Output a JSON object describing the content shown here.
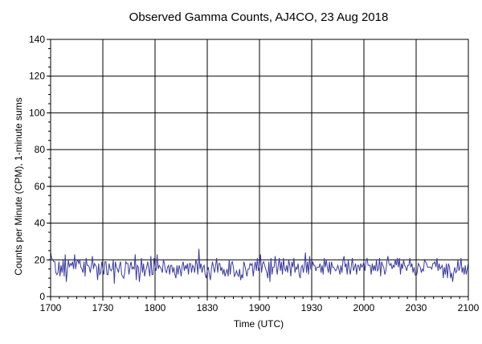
{
  "chart_data": {
    "type": "line",
    "title": "Observed Gamma Counts, AJ4CO, 23 Aug 2018",
    "xlabel": "Time (UTC)",
    "ylabel": "Counts per Minute (CPM), 1-minute sums",
    "xlim": [
      1700,
      2100
    ],
    "ylim": [
      0,
      140
    ],
    "x_ticks": [
      "1700",
      "1730",
      "1800",
      "1830",
      "1900",
      "1930",
      "2000",
      "2030",
      "2100"
    ],
    "y_ticks": [
      "0",
      "20",
      "40",
      "60",
      "80",
      "100",
      "120",
      "140"
    ],
    "grid": true,
    "line_color": "#3a3aa0",
    "series": [
      {
        "values": [
          24,
          21,
          20,
          19,
          19,
          13,
          12,
          13,
          19,
          11,
          17,
          13,
          20,
          11,
          23,
          8,
          14,
          20,
          16,
          18,
          17,
          19,
          15,
          23,
          15,
          19,
          20,
          18,
          20,
          16,
          15,
          13,
          19,
          11,
          21,
          17,
          17,
          16,
          13,
          17,
          22,
          15,
          18,
          17,
          16,
          9,
          18,
          12,
          13,
          19,
          15,
          12,
          19,
          19,
          12,
          12,
          18,
          15,
          14,
          15,
          20,
          7,
          19,
          16,
          15,
          13,
          17,
          19,
          12,
          11,
          10,
          13,
          19,
          18,
          18,
          12,
          16,
          19,
          15,
          16,
          15,
          23,
          9,
          17,
          16,
          8,
          14,
          21,
          13,
          18,
          11,
          14,
          16,
          19,
          15,
          11,
          22,
          12,
          12,
          21,
          16,
          14,
          23,
          15,
          17,
          16,
          15,
          13,
          20,
          18,
          14,
          13,
          16,
          17,
          12,
          17,
          17,
          13,
          16,
          12,
          10,
          17,
          12,
          17,
          15,
          11,
          17,
          19,
          14,
          17,
          15,
          18,
          12,
          18,
          18,
          13,
          17,
          16,
          13,
          20,
          18,
          12,
          26,
          15,
          18,
          13,
          16,
          17,
          12,
          10,
          14,
          16,
          12,
          9,
          15,
          19,
          16,
          13,
          17,
          21,
          13,
          18,
          18,
          14,
          16,
          12,
          15,
          11,
          13,
          15,
          11,
          20,
          12,
          18,
          19,
          16,
          11,
          12,
          14,
          12,
          11,
          15,
          9,
          12,
          10,
          19,
          17,
          14,
          11,
          15,
          15,
          18,
          17,
          18,
          11,
          16,
          19,
          14,
          21,
          14,
          16,
          23,
          13,
          18,
          19,
          17,
          15,
          13,
          10,
          19,
          8,
          21,
          12,
          16,
          16,
          22,
          17,
          12,
          17,
          21,
          14,
          19,
          12,
          21,
          15,
          14,
          17,
          13,
          20,
          17,
          11,
          19,
          16,
          21,
          13,
          16,
          15,
          18,
          12,
          10,
          16,
          17,
          13,
          17,
          24,
          13,
          19,
          12,
          22,
          15,
          15,
          19,
          17,
          17,
          14,
          16,
          16,
          16,
          18,
          13,
          17,
          12,
          21,
          16,
          20,
          16,
          13,
          19,
          12,
          19,
          16,
          16,
          15,
          14,
          15,
          17,
          15,
          12,
          17,
          13,
          20,
          22,
          16,
          18,
          12,
          20,
          15,
          12,
          17,
          21,
          14,
          16,
          18,
          12,
          17,
          17,
          14,
          18,
          16,
          17,
          19,
          14,
          19,
          21,
          17,
          17,
          17,
          12,
          18,
          14,
          17,
          14,
          20,
          14,
          15,
          21,
          11,
          19,
          17,
          16,
          12,
          14,
          19,
          22,
          18,
          17,
          18,
          15,
          17,
          16,
          20,
          17,
          21,
          16,
          21,
          12,
          18,
          15,
          20,
          17,
          16,
          14,
          17,
          17,
          21,
          16,
          18,
          13,
          16,
          12,
          11,
          13,
          18,
          17,
          16,
          13,
          15,
          14,
          20,
          19,
          18,
          16,
          16,
          16,
          16,
          15,
          18,
          18,
          19,
          16,
          21,
          14,
          18,
          15,
          16,
          17,
          10,
          16,
          12,
          18,
          10,
          18,
          16,
          10,
          13,
          8,
          13,
          16,
          13,
          14,
          20,
          14,
          16,
          21,
          13,
          16,
          12,
          17,
          12,
          15,
          18
        ]
      }
    ]
  }
}
